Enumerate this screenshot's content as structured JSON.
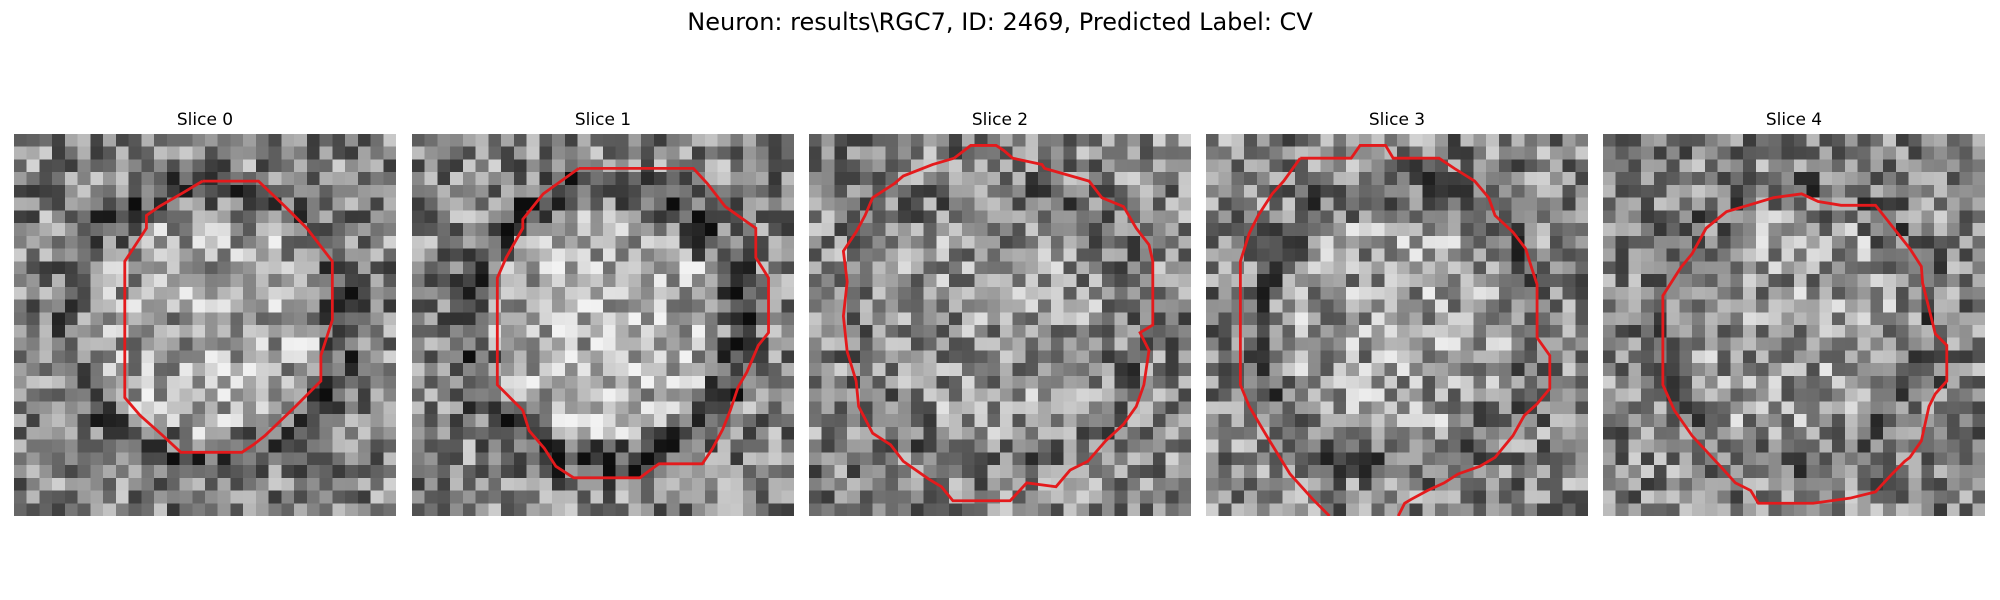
{
  "figure": {
    "title": "Neuron: results\\RGC7, ID: 2469, Predicted Label: CV",
    "contour_color": "#e41a1c"
  },
  "panels": [
    {
      "title": "Slice 0",
      "seed": 11,
      "ring": 0.55,
      "center_brightness": 0.12
    },
    {
      "title": "Slice 1",
      "seed": 23,
      "ring": 0.65,
      "center_brightness": 0.18
    },
    {
      "title": "Slice 2",
      "seed": 37,
      "ring": 0.15,
      "center_brightness": 0.06
    },
    {
      "title": "Slice 3",
      "seed": 41,
      "ring": 0.35,
      "center_brightness": 0.1
    },
    {
      "title": "Slice 4",
      "seed": 53,
      "ring": 0.3,
      "center_brightness": 0.08
    }
  ]
}
